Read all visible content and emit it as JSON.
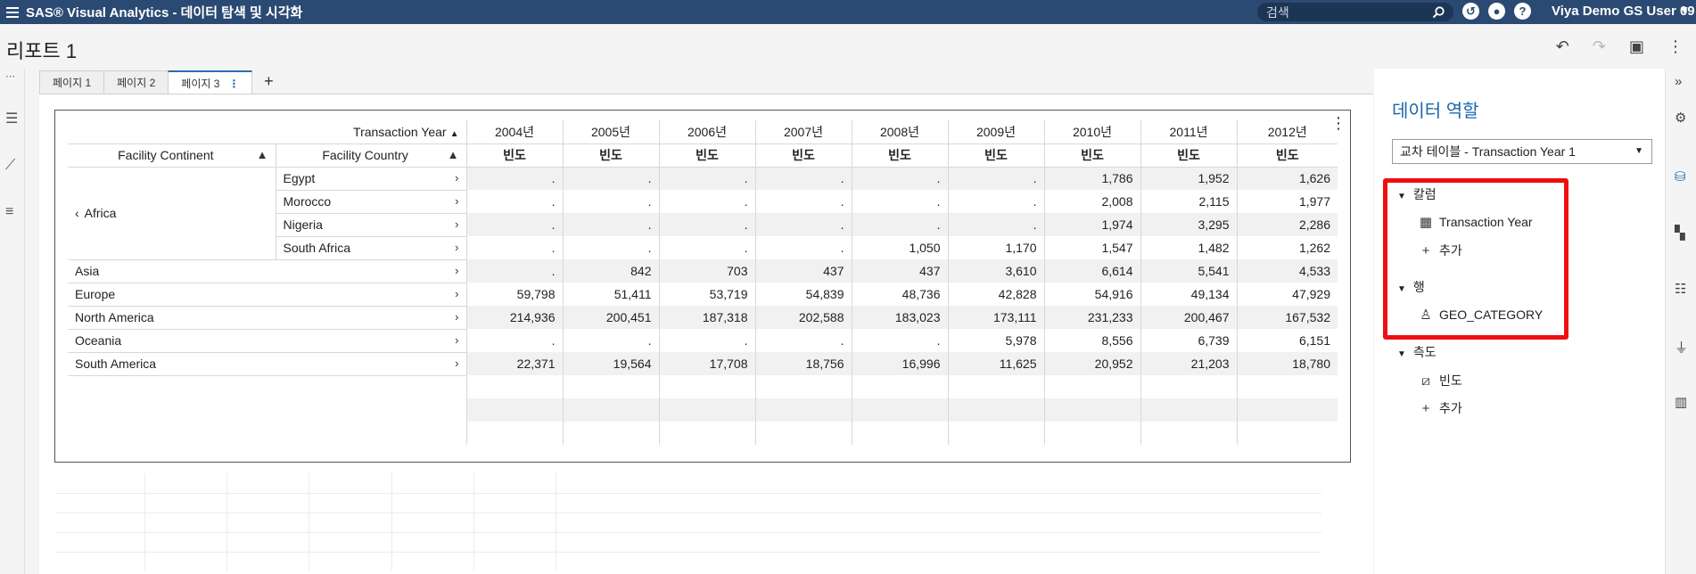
{
  "app": {
    "title": "SAS® Visual Analytics - 데이터 탐색 및 시각화",
    "search_placeholder": "검색",
    "user": "Viya Demo GS User 09"
  },
  "report": {
    "title": "리포트 1"
  },
  "tabs": [
    {
      "label": "페이지 1"
    },
    {
      "label": "페이지 2"
    },
    {
      "label": "페이지 3",
      "active": true
    }
  ],
  "crosstab": {
    "column_header": "Transaction Year",
    "row_headers": [
      "Facility Continent",
      "Facility Country"
    ],
    "measure": "빈도",
    "years": [
      "2004년",
      "2005년",
      "2006년",
      "2007년",
      "2008년",
      "2009년",
      "2010년",
      "2011년",
      "2012년"
    ],
    "africa": {
      "label": "Africa",
      "countries": [
        {
          "name": "Egypt",
          "values": [
            ".",
            ".",
            ".",
            ".",
            ".",
            ".",
            "1,786",
            "1,952",
            "1,626"
          ]
        },
        {
          "name": "Morocco",
          "values": [
            ".",
            ".",
            ".",
            ".",
            ".",
            ".",
            "2,008",
            "2,115",
            "1,977"
          ]
        },
        {
          "name": "Nigeria",
          "values": [
            ".",
            ".",
            ".",
            ".",
            ".",
            ".",
            "1,974",
            "3,295",
            "2,286"
          ]
        },
        {
          "name": "South Africa",
          "values": [
            ".",
            ".",
            ".",
            ".",
            "1,050",
            "1,170",
            "1,547",
            "1,482",
            "1,262"
          ]
        }
      ]
    },
    "continents": [
      {
        "name": "Asia",
        "values": [
          ".",
          "842",
          "703",
          "437",
          "437",
          "3,610",
          "6,614",
          "5,541",
          "4,533"
        ]
      },
      {
        "name": "Europe",
        "values": [
          "59,798",
          "51,411",
          "53,719",
          "54,839",
          "48,736",
          "42,828",
          "54,916",
          "49,134",
          "47,929"
        ]
      },
      {
        "name": "North America",
        "values": [
          "214,936",
          "200,451",
          "187,318",
          "202,588",
          "183,023",
          "173,111",
          "231,233",
          "200,467",
          "167,532"
        ]
      },
      {
        "name": "Oceania",
        "values": [
          ".",
          ".",
          ".",
          ".",
          ".",
          "5,978",
          "8,556",
          "6,739",
          "6,151"
        ]
      },
      {
        "name": "South America",
        "values": [
          "22,371",
          "19,564",
          "17,708",
          "18,756",
          "16,996",
          "11,625",
          "20,952",
          "21,203",
          "18,780"
        ]
      }
    ]
  },
  "panel": {
    "title": "데이터 역할",
    "select_value": "교차 테이블 - Transaction Year 1",
    "sections": {
      "columns": {
        "label": "칼럼",
        "item": "Transaction Year",
        "add": "추가"
      },
      "rows": {
        "label": "행",
        "item": "GEO_CATEGORY"
      },
      "measures": {
        "label": "측도",
        "item": "빈도",
        "add": "추가"
      }
    }
  },
  "colors": {
    "topbar": "#2b4a73",
    "accent": "#1a66a8",
    "highlight": "#ee1010"
  }
}
